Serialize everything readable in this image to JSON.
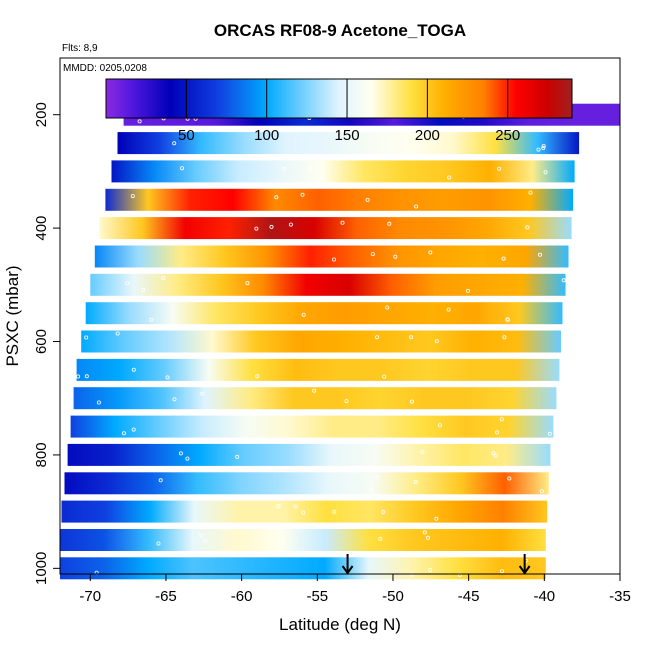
{
  "chart_data": {
    "type": "heatmap",
    "title": "ORCAS RF08-9 Acetone_TOGA",
    "annotations": {
      "flights": "Flts: 8,9",
      "dates": "MMDD: 0205,0208"
    },
    "xlabel": "Latitude (deg N)",
    "ylabel": "PSXC (mbar)",
    "xlim": [
      -72,
      -35
    ],
    "ylim": [
      1010,
      100
    ],
    "x_ticks": [
      -70,
      -65,
      -60,
      -55,
      -50,
      -45,
      -40,
      -35
    ],
    "y_ticks": [
      200,
      400,
      600,
      800,
      1000
    ],
    "colorbar": {
      "range": [
        0,
        290
      ],
      "ticks": [
        50,
        100,
        150,
        200,
        250
      ],
      "stops": [
        [
          0,
          "#8a2be2"
        ],
        [
          18,
          "#4b16dd"
        ],
        [
          40,
          "#0000b8"
        ],
        [
          70,
          "#1040e0"
        ],
        [
          100,
          "#00aaff"
        ],
        [
          125,
          "#80d4ff"
        ],
        [
          145,
          "#e0f4ff"
        ],
        [
          165,
          "#fffff0"
        ],
        [
          190,
          "#ffe040"
        ],
        [
          210,
          "#ffb000"
        ],
        [
          235,
          "#ff8000"
        ],
        [
          255,
          "#ff0000"
        ],
        [
          275,
          "#cc0000"
        ],
        [
          290,
          "#a02020"
        ]
      ]
    },
    "colors": {
      "point_edge": "#ffffff",
      "arrow": "#000000"
    },
    "arrows_x": [
      -53,
      -41.3
    ],
    "rows": [
      {
        "p": 200,
        "x0": -67.8,
        "x1": -35,
        "v": [
          10,
          12,
          15,
          40,
          60,
          35,
          15,
          45,
          30,
          12,
          10,
          10
        ]
      },
      {
        "p": 250,
        "x0": -68.2,
        "x1": -37.7,
        "v": [
          40,
          70,
          110,
          130,
          145,
          150,
          160,
          165,
          170,
          190,
          110,
          50
        ]
      },
      {
        "p": 300,
        "x0": -68.6,
        "x1": -38,
        "v": [
          50,
          90,
          120,
          140,
          150,
          165,
          185,
          195,
          200,
          210,
          180,
          100
        ]
      },
      {
        "p": 350,
        "x0": -69.0,
        "x1": -38.1,
        "v": [
          60,
          200,
          250,
          255,
          230,
          240,
          235,
          225,
          220,
          225,
          210,
          100
        ]
      },
      {
        "p": 400,
        "x0": -69.4,
        "x1": -38.2,
        "v": [
          170,
          200,
          260,
          250,
          285,
          270,
          240,
          230,
          225,
          215,
          200,
          130
        ]
      },
      {
        "p": 450,
        "x0": -69.7,
        "x1": -38.4,
        "v": [
          90,
          130,
          180,
          200,
          225,
          250,
          240,
          225,
          215,
          210,
          215,
          110
        ]
      },
      {
        "p": 500,
        "x0": -70.0,
        "x1": -38.6,
        "v": [
          120,
          150,
          180,
          200,
          230,
          260,
          270,
          240,
          220,
          215,
          210,
          110
        ]
      },
      {
        "p": 550,
        "x0": -70.3,
        "x1": -38.8,
        "v": [
          100,
          130,
          160,
          185,
          200,
          215,
          220,
          215,
          210,
          215,
          200,
          110
        ]
      },
      {
        "p": 600,
        "x0": -70.6,
        "x1": -38.9,
        "v": [
          100,
          120,
          135,
          170,
          200,
          215,
          210,
          205,
          200,
          210,
          205,
          120
        ]
      },
      {
        "p": 650,
        "x0": -70.9,
        "x1": -39.0,
        "v": [
          90,
          100,
          120,
          160,
          190,
          205,
          200,
          200,
          195,
          200,
          200,
          130
        ]
      },
      {
        "p": 700,
        "x0": -71.1,
        "x1": -39.2,
        "v": [
          80,
          95,
          115,
          145,
          180,
          200,
          200,
          195,
          200,
          200,
          195,
          130
        ]
      },
      {
        "p": 750,
        "x0": -71.3,
        "x1": -39.4,
        "v": [
          70,
          100,
          120,
          140,
          160,
          170,
          180,
          180,
          190,
          200,
          195,
          130
        ]
      },
      {
        "p": 800,
        "x0": -71.5,
        "x1": -39.6,
        "v": [
          45,
          55,
          80,
          100,
          120,
          130,
          150,
          160,
          175,
          185,
          180,
          130
        ]
      },
      {
        "p": 850,
        "x0": -71.7,
        "x1": -39.7,
        "v": [
          45,
          60,
          80,
          110,
          125,
          135,
          150,
          160,
          180,
          200,
          240,
          180
        ]
      },
      {
        "p": 900,
        "x0": -71.9,
        "x1": -39.8,
        "v": [
          60,
          70,
          100,
          150,
          175,
          175,
          190,
          185,
          200,
          215,
          235,
          200
        ]
      },
      {
        "p": 950,
        "x0": -72.0,
        "x1": -39.9,
        "v": [
          65,
          75,
          110,
          150,
          170,
          165,
          140,
          190,
          200,
          205,
          210,
          190
        ]
      },
      {
        "p": 1000,
        "x0": -72.0,
        "x1": -39.9,
        "v": [
          70,
          80,
          100,
          115,
          110,
          105,
          100,
          150,
          175,
          190,
          205,
          200
        ]
      }
    ]
  }
}
